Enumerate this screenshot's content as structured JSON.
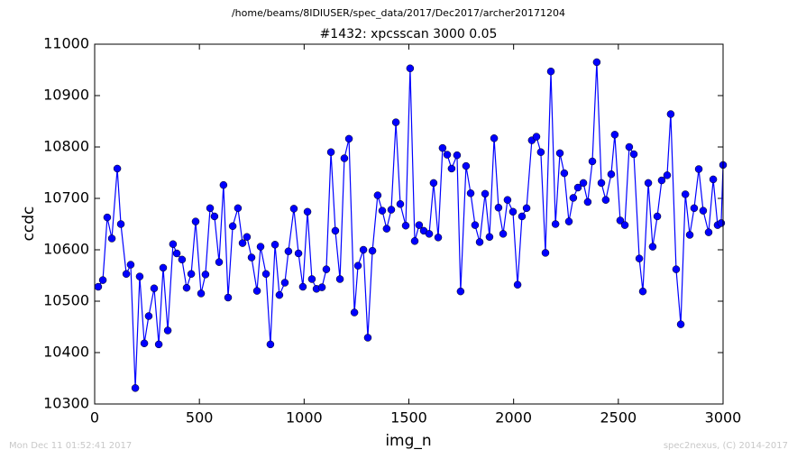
{
  "chart_data": {
    "type": "line",
    "suptitle": "/home/beams/8IDIUSER/spec_data/2017/Dec2017/archer20171204",
    "title": "#1432: xpcsscan 3000 0.05",
    "xlabel": "img_n",
    "ylabel": "ccdc",
    "footer_left": "Mon Dec 11 01:52:41 2017",
    "footer_right": "spec2nexus, (C) 2014-2017",
    "x": [
      17,
      39,
      60,
      82,
      108,
      125,
      151,
      172,
      194,
      215,
      237,
      258,
      284,
      306,
      327,
      349,
      374,
      392,
      417,
      439,
      461,
      482,
      508,
      529,
      551,
      572,
      594,
      615,
      637,
      659,
      684,
      706,
      727,
      749,
      775,
      792,
      818,
      839,
      861,
      882,
      908,
      925,
      951,
      973,
      994,
      1016,
      1037,
      1059,
      1085,
      1106,
      1128,
      1149,
      1171,
      1192,
      1214,
      1240,
      1257,
      1283,
      1304,
      1326,
      1351,
      1373,
      1394,
      1416,
      1438,
      1459,
      1485,
      1506,
      1528,
      1549,
      1571,
      1597,
      1618,
      1640,
      1661,
      1683,
      1704,
      1730,
      1747,
      1773,
      1795,
      1816,
      1838,
      1864,
      1885,
      1907,
      1928,
      1950,
      1971,
      1997,
      2019,
      2040,
      2062,
      2087,
      2109,
      2130,
      2152,
      2178,
      2200,
      2221,
      2242,
      2264,
      2285,
      2307,
      2333,
      2354,
      2376,
      2397,
      2419,
      2440,
      2466,
      2483,
      2509,
      2531,
      2552,
      2574,
      2600,
      2617,
      2643,
      2664,
      2686,
      2707,
      2733,
      2750,
      2776,
      2798,
      2820,
      2841,
      2862,
      2884,
      2905,
      2931,
      2953,
      2974,
      2991,
      3000
    ],
    "series": [
      {
        "name": "ccdc",
        "color": "#0000ff",
        "values": [
          10528,
          10541,
          10663,
          10622,
          10758,
          10650,
          10553,
          10571,
          10331,
          10548,
          10418,
          10471,
          10525,
          10416,
          10565,
          10443,
          10611,
          10593,
          10581,
          10526,
          10553,
          10655,
          10515,
          10552,
          10681,
          10665,
          10576,
          10726,
          10507,
          10646,
          10681,
          10613,
          10625,
          10585,
          10520,
          10606,
          10553,
          10416,
          10610,
          10512,
          10536,
          10597,
          10680,
          10593,
          10528,
          10674,
          10543,
          10524,
          10527,
          10562,
          10790,
          10637,
          10543,
          10778,
          10816,
          10478,
          10569,
          10600,
          10429,
          10598,
          10706,
          10676,
          10641,
          10678,
          10848,
          10689,
          10647,
          10953,
          10617,
          10648,
          10637,
          10631,
          10730,
          10624,
          10798,
          10785,
          10758,
          10784,
          10519,
          10763,
          10710,
          10648,
          10615,
          10709,
          10625,
          10817,
          10682,
          10631,
          10697,
          10674,
          10532,
          10665,
          10681,
          10813,
          10820,
          10790,
          10594,
          10947,
          10650,
          10788,
          10749,
          10655,
          10701,
          10721,
          10730,
          10693,
          10772,
          10965,
          10730,
          10697,
          10747,
          10824,
          10657,
          10648,
          10800,
          10786,
          10583,
          10519,
          10730,
          10606,
          10665,
          10735,
          10745,
          10864,
          10562,
          10455,
          10708,
          10629,
          10681,
          10757,
          10676,
          10634,
          10737,
          10648,
          10652,
          10765
        ]
      }
    ],
    "xlim": [
      0,
      3000
    ],
    "xticks": [
      0,
      500,
      1000,
      1500,
      2000,
      2500,
      3000
    ],
    "ylim": [
      10300,
      11000
    ],
    "yticks": [
      10300,
      10400,
      10500,
      10600,
      10700,
      10800,
      10900,
      11000
    ]
  }
}
